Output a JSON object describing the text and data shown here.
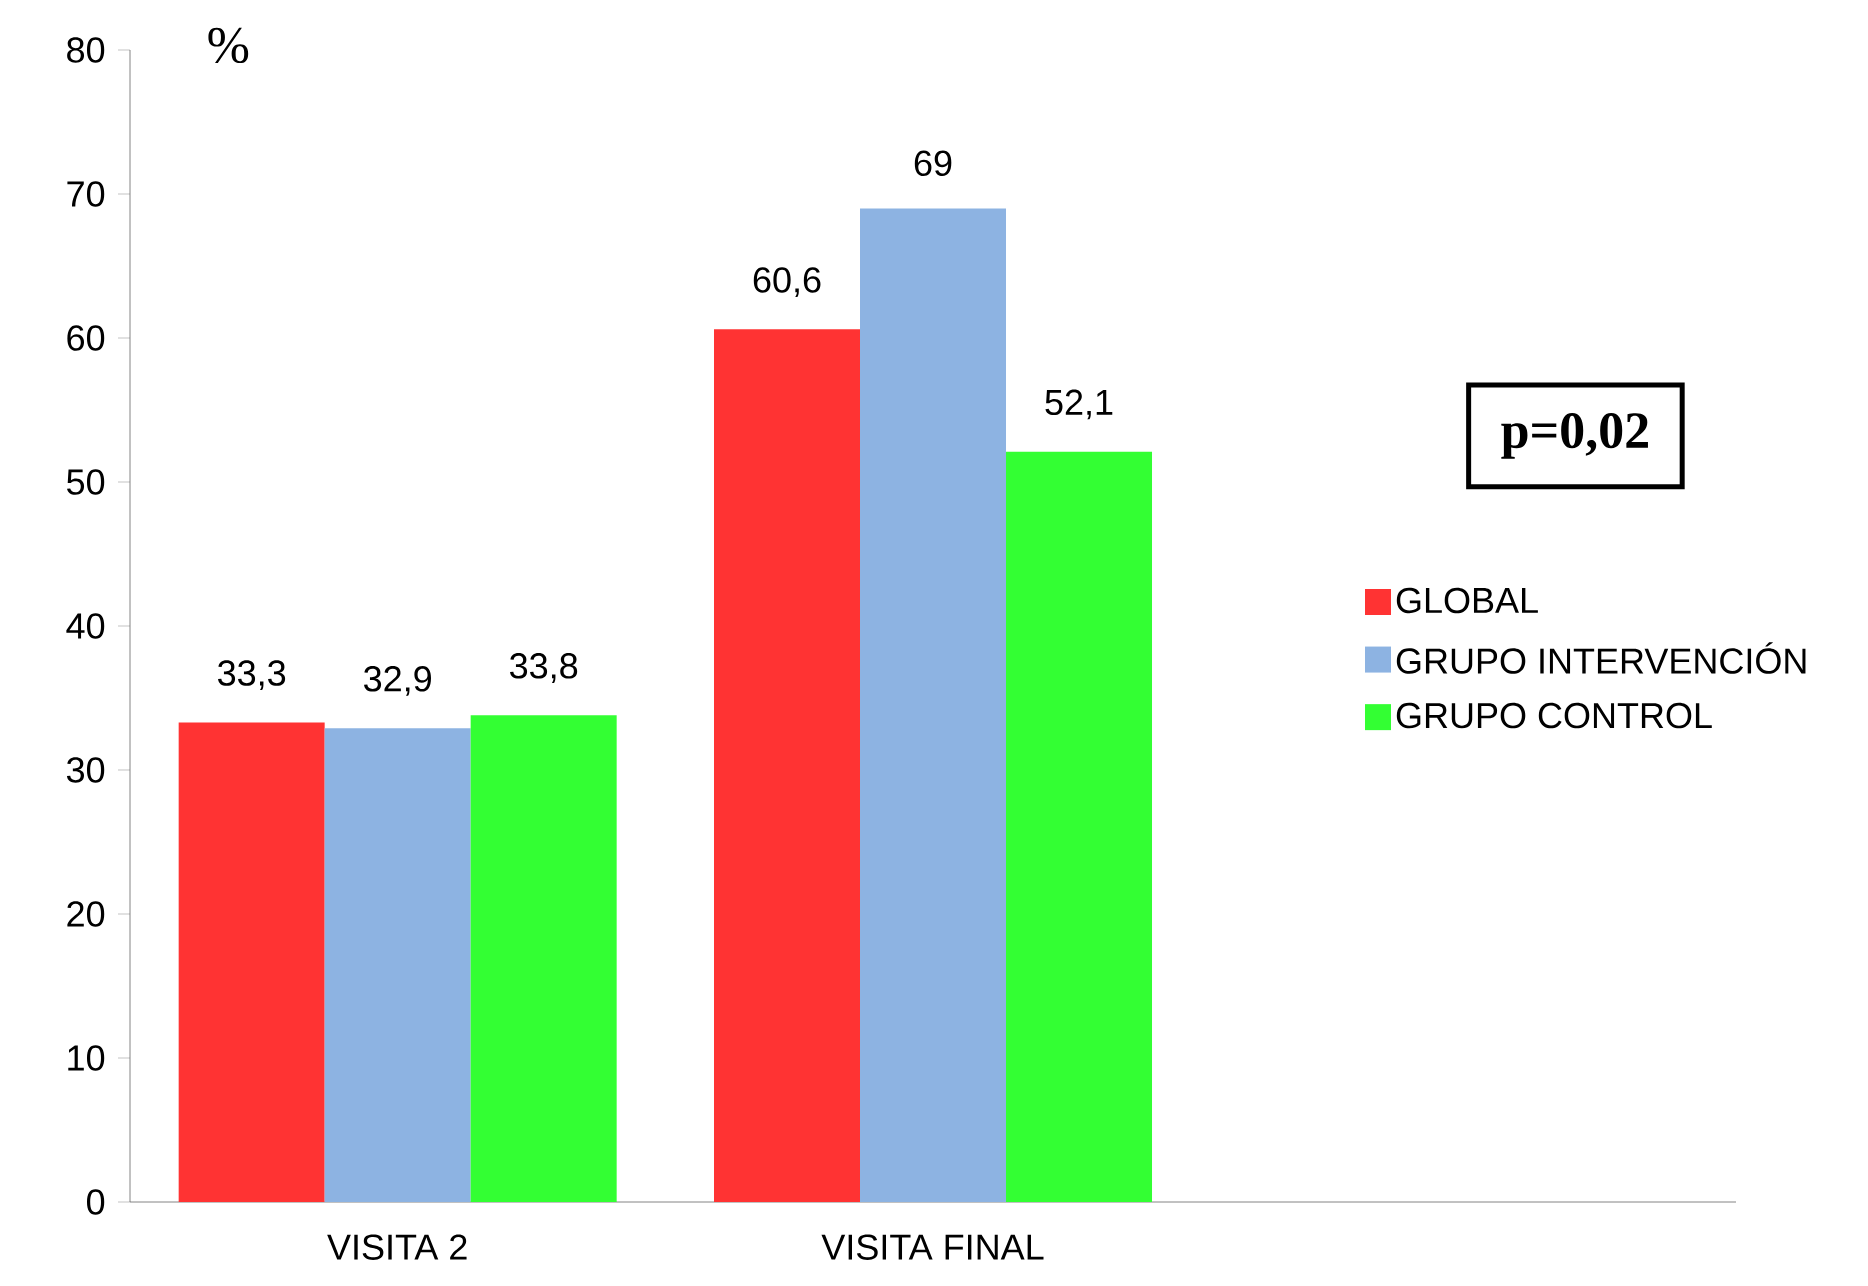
{
  "chart_data": {
    "type": "bar",
    "ylabel": "%",
    "categories": [
      "VISITA 2",
      "VISITA FINAL",
      null
    ],
    "series": [
      {
        "name": "GLOBAL",
        "color": "#ff3333",
        "values": [
          33.3,
          60.6,
          null
        ],
        "value_labels": [
          "33,3",
          "60,6",
          null
        ]
      },
      {
        "name": "GRUPO INTERVENCIÓN",
        "color": "#8db3e2",
        "values": [
          32.9,
          69,
          null
        ],
        "value_labels": [
          "32,9",
          "69",
          null
        ]
      },
      {
        "name": "GRUPO CONTROL",
        "color": "#33ff33",
        "values": [
          33.8,
          52.1,
          null
        ],
        "value_labels": [
          "33,8",
          "52,1",
          null
        ]
      }
    ],
    "ylim": [
      0,
      80
    ],
    "yticks": [
      0,
      10,
      20,
      30,
      40,
      50,
      60,
      70,
      80
    ],
    "grid": false,
    "legend": "right",
    "annotations": [
      "p=0,02"
    ]
  }
}
